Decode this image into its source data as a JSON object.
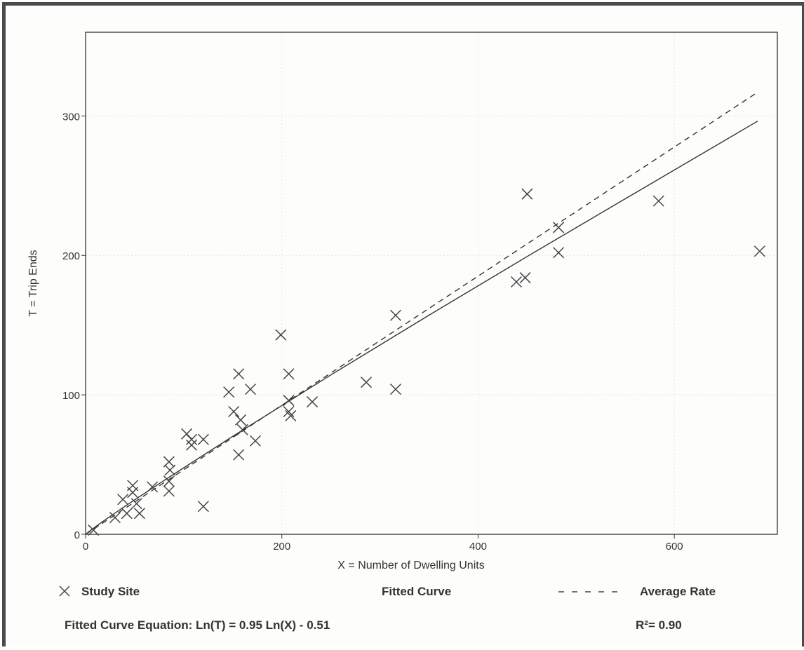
{
  "chart_data": {
    "type": "scatter",
    "xlabel": "X = Number of Dwelling Units",
    "ylabel": "T = Trip Ends",
    "xlim": [
      0,
      705
    ],
    "ylim": [
      0,
      360
    ],
    "x_ticks": [
      0,
      200,
      400,
      600
    ],
    "y_ticks": [
      0,
      100,
      200,
      300
    ],
    "grid": true,
    "legend": {
      "study_site": "Study Site",
      "fitted_curve": "Fitted Curve",
      "average_rate": "Average Rate",
      "equation": "Fitted Curve Equation: Ln(T) = 0.95 Ln(X) - 0.51",
      "r_squared": "R²= 0.90"
    },
    "series": [
      {
        "name": "Study Site",
        "marker": "x",
        "points": [
          [
            8,
            3
          ],
          [
            30,
            12
          ],
          [
            38,
            25
          ],
          [
            42,
            15
          ],
          [
            48,
            35
          ],
          [
            48,
            30
          ],
          [
            52,
            22
          ],
          [
            55,
            15
          ],
          [
            68,
            34
          ],
          [
            85,
            52
          ],
          [
            86,
            46
          ],
          [
            85,
            38
          ],
          [
            85,
            31
          ],
          [
            103,
            72
          ],
          [
            108,
            68
          ],
          [
            108,
            64
          ],
          [
            120,
            68
          ],
          [
            120,
            20
          ],
          [
            146,
            102
          ],
          [
            151,
            88
          ],
          [
            156,
            115
          ],
          [
            156,
            57
          ],
          [
            158,
            82
          ],
          [
            160,
            75
          ],
          [
            168,
            104
          ],
          [
            173,
            67
          ],
          [
            199,
            143
          ],
          [
            207,
            115
          ],
          [
            207,
            96
          ],
          [
            207,
            88
          ],
          [
            209,
            85
          ],
          [
            231,
            95
          ],
          [
            286,
            109
          ],
          [
            316,
            157
          ],
          [
            316,
            104
          ],
          [
            439,
            181
          ],
          [
            448,
            184
          ],
          [
            450,
            244
          ],
          [
            482,
            220
          ],
          [
            482,
            202
          ],
          [
            584,
            239
          ],
          [
            687,
            203
          ]
        ]
      },
      {
        "name": "Fitted Curve",
        "kind": "line",
        "style": "solid",
        "x": [
          2,
          10,
          20,
          40,
          80,
          150,
          250,
          350,
          450,
          550,
          685
        ],
        "y": [
          1.2,
          5.4,
          10.4,
          20.0,
          38.6,
          70.3,
          114.3,
          157.1,
          199.2,
          240.6,
          296.3
        ]
      },
      {
        "name": "Average Rate",
        "kind": "line",
        "style": "dashed",
        "x": [
          0,
          685
        ],
        "y": [
          0,
          317
        ]
      }
    ],
    "colors": {
      "marker": "#444444",
      "line": "#333333",
      "axis": "#333333",
      "grid": "#e6e6e6"
    }
  }
}
